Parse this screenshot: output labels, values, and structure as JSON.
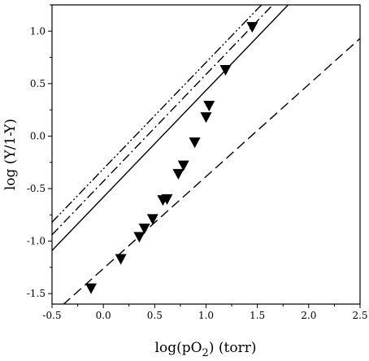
{
  "chart_data": {
    "type": "scatter",
    "title": "",
    "xlabel": "log(pO2) (torr)",
    "xlabel_parts": {
      "prefix": "log(pO",
      "subscript": "2",
      "suffix": ") (torr)"
    },
    "ylabel": "log (Y/1-Y)",
    "xlim": [
      -0.5,
      2.5
    ],
    "ylim": [
      -1.6,
      1.25
    ],
    "x_ticks": [
      -0.5,
      0.0,
      0.5,
      1.0,
      1.5,
      2.0,
      2.5
    ],
    "x_tick_labels": [
      "-0.5",
      "0.0",
      "0.5",
      "1.0",
      "1.5",
      "2.0",
      "2.5"
    ],
    "y_ticks": [
      -1.5,
      -1.0,
      -0.5,
      0.0,
      0.5,
      1.0
    ],
    "y_tick_labels": [
      "-1.5",
      "-1.0",
      "-0.5",
      "0.0",
      "0.5",
      "1.0"
    ],
    "grid": false,
    "legend": "none",
    "scatter_series": {
      "marker": "inverted-triangle",
      "color": "#000000",
      "points": [
        {
          "x": -0.12,
          "y": -1.45
        },
        {
          "x": 0.17,
          "y": -1.17
        },
        {
          "x": 0.35,
          "y": -0.96
        },
        {
          "x": 0.4,
          "y": -0.88
        },
        {
          "x": 0.48,
          "y": -0.79
        },
        {
          "x": 0.58,
          "y": -0.61
        },
        {
          "x": 0.62,
          "y": -0.6
        },
        {
          "x": 0.73,
          "y": -0.36
        },
        {
          "x": 0.78,
          "y": -0.28
        },
        {
          "x": 0.89,
          "y": -0.06
        },
        {
          "x": 1.0,
          "y": 0.18
        },
        {
          "x": 1.03,
          "y": 0.29
        },
        {
          "x": 1.19,
          "y": 0.63
        },
        {
          "x": 1.45,
          "y": 1.04
        }
      ]
    },
    "line_series": [
      {
        "style": "solid",
        "color": "#000000",
        "x": [
          -0.5,
          1.8
        ],
        "y": [
          -1.09,
          1.25
        ]
      },
      {
        "style": "dash-dot",
        "color": "#000000",
        "x": [
          -0.5,
          1.65
        ],
        "y": [
          -0.94,
          1.25
        ]
      },
      {
        "style": "dash-dot-dot",
        "color": "#000000",
        "x": [
          -0.5,
          1.54
        ],
        "y": [
          -0.82,
          1.25
        ]
      },
      {
        "style": "dashed",
        "color": "#000000",
        "x": [
          -0.5,
          2.5
        ],
        "y": [
          -1.7,
          0.93
        ]
      }
    ]
  }
}
